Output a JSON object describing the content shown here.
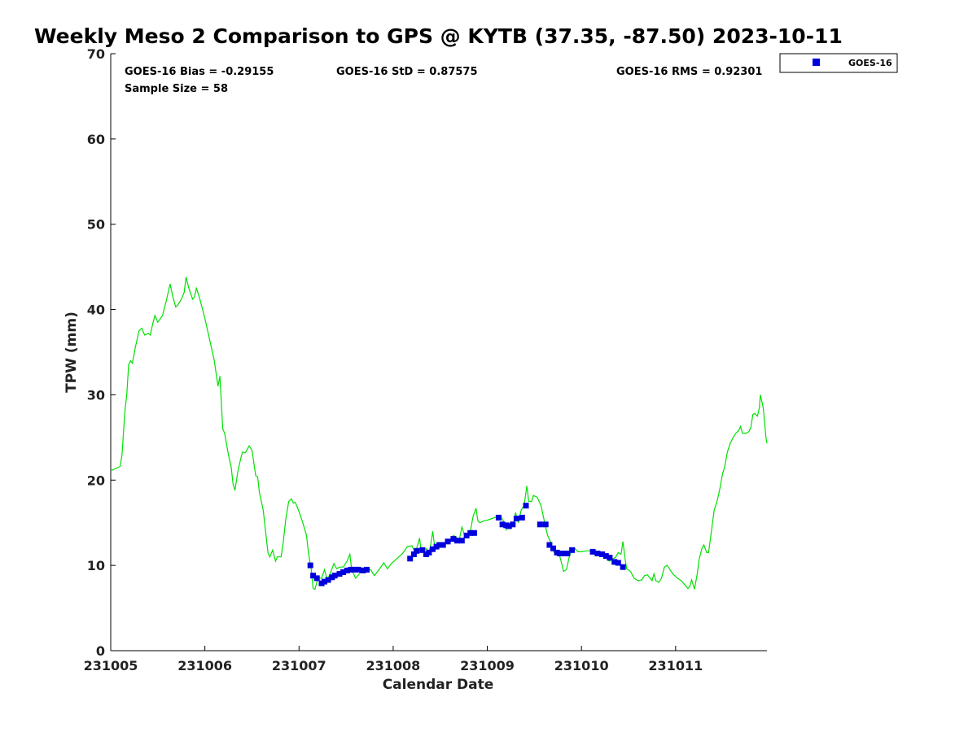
{
  "title": "Weekly Meso 2 Comparison to GPS @ KYTB (37.35, -87.50) 2023-10-11",
  "stats": {
    "bias": "GOES-16 Bias = -0.29155",
    "std": "GOES-16 StD = 0.87575",
    "rms": "GOES-16 RMS = 0.92301",
    "sample": "Sample Size = 58"
  },
  "chart_data": {
    "type": "scatter",
    "xlabel": "Calendar Date",
    "ylabel": "TPW (mm)",
    "xlim": [
      0,
      6.97
    ],
    "ylim": [
      0,
      70
    ],
    "x_ticks": [
      {
        "value": 0,
        "label": "231005"
      },
      {
        "value": 1,
        "label": "231006"
      },
      {
        "value": 2,
        "label": "231007"
      },
      {
        "value": 3,
        "label": "231008"
      },
      {
        "value": 4,
        "label": "231009"
      },
      {
        "value": 5,
        "label": "231010"
      },
      {
        "value": 6,
        "label": "231011"
      }
    ],
    "y_ticks": [
      0,
      10,
      20,
      30,
      40,
      50,
      60,
      70
    ],
    "legend": {
      "placement": "outside-top-right",
      "entries": [
        "GOES-16"
      ]
    },
    "gps_line": {
      "color": "#00e000",
      "points": [
        [
          0,
          21.1
        ],
        [
          0.1,
          21.6
        ],
        [
          0.12,
          23.0
        ],
        [
          0.15,
          28.0
        ],
        [
          0.17,
          30.0
        ],
        [
          0.19,
          33.5
        ],
        [
          0.21,
          34.0
        ],
        [
          0.23,
          33.7
        ],
        [
          0.26,
          35.5
        ],
        [
          0.3,
          37.5
        ],
        [
          0.33,
          37.8
        ],
        [
          0.36,
          37.0
        ],
        [
          0.4,
          37.2
        ],
        [
          0.42,
          37.0
        ],
        [
          0.45,
          38.5
        ],
        [
          0.47,
          39.3
        ],
        [
          0.5,
          38.5
        ],
        [
          0.55,
          39.3
        ],
        [
          0.59,
          41.0
        ],
        [
          0.62,
          42.5
        ],
        [
          0.63,
          43.0
        ],
        [
          0.66,
          41.5
        ],
        [
          0.69,
          40.3
        ],
        [
          0.71,
          40.5
        ],
        [
          0.75,
          41.2
        ],
        [
          0.78,
          42.0
        ],
        [
          0.8,
          43.8
        ],
        [
          0.83,
          42.5
        ],
        [
          0.87,
          41.2
        ],
        [
          0.89,
          41.5
        ],
        [
          0.91,
          42.5
        ],
        [
          0.94,
          41.5
        ],
        [
          1.0,
          39.0
        ],
        [
          1.05,
          36.5
        ],
        [
          1.1,
          34.0
        ],
        [
          1.14,
          31.0
        ],
        [
          1.16,
          32.2
        ],
        [
          1.19,
          26.0
        ],
        [
          1.21,
          25.5
        ],
        [
          1.25,
          23.0
        ],
        [
          1.28,
          21.5
        ],
        [
          1.3,
          19.5
        ],
        [
          1.32,
          18.8
        ],
        [
          1.35,
          21.0
        ],
        [
          1.38,
          22.5
        ],
        [
          1.4,
          23.3
        ],
        [
          1.43,
          23.2
        ],
        [
          1.47,
          24.0
        ],
        [
          1.5,
          23.5
        ],
        [
          1.52,
          22.0
        ],
        [
          1.54,
          20.5
        ],
        [
          1.56,
          20.4
        ],
        [
          1.58,
          18.5
        ],
        [
          1.62,
          16.5
        ],
        [
          1.64,
          14.5
        ],
        [
          1.67,
          11.5
        ],
        [
          1.69,
          11.0
        ],
        [
          1.72,
          11.8
        ],
        [
          1.75,
          10.5
        ],
        [
          1.77,
          11.0
        ],
        [
          1.81,
          11.0
        ],
        [
          1.83,
          12.5
        ],
        [
          1.86,
          15.5
        ],
        [
          1.89,
          17.5
        ],
        [
          1.92,
          17.8
        ],
        [
          1.94,
          17.3
        ],
        [
          1.96,
          17.4
        ],
        [
          2.0,
          16.3
        ],
        [
          2.04,
          15.0
        ],
        [
          2.08,
          13.5
        ],
        [
          2.1,
          11.5
        ],
        [
          2.13,
          9.5
        ],
        [
          2.15,
          7.3
        ],
        [
          2.17,
          7.2
        ],
        [
          2.2,
          8.5
        ],
        [
          2.24,
          8.5
        ],
        [
          2.27,
          9.5
        ],
        [
          2.3,
          8.3
        ],
        [
          2.33,
          9.0
        ],
        [
          2.37,
          10.2
        ],
        [
          2.4,
          9.6
        ],
        [
          2.43,
          9.8
        ],
        [
          2.47,
          9.8
        ],
        [
          2.51,
          10.5
        ],
        [
          2.54,
          11.3
        ],
        [
          2.56,
          9.5
        ],
        [
          2.6,
          8.5
        ],
        [
          2.64,
          9.0
        ],
        [
          2.68,
          9.7
        ],
        [
          2.72,
          9.5
        ],
        [
          2.76,
          9.5
        ],
        [
          2.8,
          8.8
        ],
        [
          2.85,
          9.5
        ],
        [
          2.9,
          10.3
        ],
        [
          2.94,
          9.6
        ],
        [
          2.98,
          10.2
        ],
        [
          3.04,
          10.8
        ],
        [
          3.1,
          11.4
        ],
        [
          3.15,
          12.2
        ],
        [
          3.2,
          12.3
        ],
        [
          3.22,
          11.8
        ],
        [
          3.25,
          12.0
        ],
        [
          3.28,
          13.2
        ],
        [
          3.3,
          11.5
        ],
        [
          3.35,
          12.0
        ],
        [
          3.38,
          11.6
        ],
        [
          3.4,
          12.5
        ],
        [
          3.42,
          14.0
        ],
        [
          3.44,
          12.3
        ],
        [
          3.48,
          12.5
        ],
        [
          3.52,
          12.5
        ],
        [
          3.55,
          12.6
        ],
        [
          3.58,
          12.8
        ],
        [
          3.61,
          12.8
        ],
        [
          3.64,
          13.5
        ],
        [
          3.67,
          13.3
        ],
        [
          3.7,
          12.9
        ],
        [
          3.73,
          14.5
        ],
        [
          3.76,
          13.5
        ],
        [
          3.79,
          13.5
        ],
        [
          3.82,
          14.0
        ],
        [
          3.85,
          15.8
        ],
        [
          3.88,
          16.7
        ],
        [
          3.9,
          15.2
        ],
        [
          3.92,
          15.0
        ],
        [
          3.96,
          15.2
        ],
        [
          4.0,
          15.3
        ],
        [
          4.05,
          15.5
        ],
        [
          4.1,
          15.7
        ],
        [
          4.14,
          15.8
        ],
        [
          4.18,
          15.0
        ],
        [
          4.2,
          14.2
        ],
        [
          4.22,
          15.0
        ],
        [
          4.25,
          14.7
        ],
        [
          4.28,
          15.0
        ],
        [
          4.3,
          16.2
        ],
        [
          4.33,
          15.0
        ],
        [
          4.36,
          16.5
        ],
        [
          4.39,
          17.0
        ],
        [
          4.42,
          19.3
        ],
        [
          4.44,
          17.5
        ],
        [
          4.47,
          17.5
        ],
        [
          4.49,
          18.2
        ],
        [
          4.53,
          18.0
        ],
        [
          4.57,
          17.0
        ],
        [
          4.6,
          15.5
        ],
        [
          4.62,
          14.5
        ],
        [
          4.64,
          13.5
        ],
        [
          4.67,
          12.8
        ],
        [
          4.69,
          12.0
        ],
        [
          4.71,
          11.5
        ],
        [
          4.73,
          11.3
        ],
        [
          4.76,
          11.5
        ],
        [
          4.79,
          10.2
        ],
        [
          4.81,
          9.3
        ],
        [
          4.84,
          9.5
        ],
        [
          4.87,
          11.0
        ],
        [
          4.9,
          11.8
        ],
        [
          4.93,
          12.0
        ],
        [
          4.96,
          11.6
        ],
        [
          5.0,
          11.6
        ],
        [
          5.05,
          11.7
        ],
        [
          5.1,
          11.7
        ],
        [
          5.14,
          11.5
        ],
        [
          5.18,
          11.3
        ],
        [
          5.22,
          11.6
        ],
        [
          5.25,
          11.2
        ],
        [
          5.28,
          10.6
        ],
        [
          5.3,
          10.5
        ],
        [
          5.33,
          10.8
        ],
        [
          5.36,
          10.9
        ],
        [
          5.39,
          11.5
        ],
        [
          5.42,
          11.3
        ],
        [
          5.44,
          12.8
        ],
        [
          5.46,
          11.0
        ],
        [
          5.48,
          9.6
        ],
        [
          5.52,
          9.3
        ],
        [
          5.56,
          8.5
        ],
        [
          5.6,
          8.2
        ],
        [
          5.64,
          8.3
        ],
        [
          5.67,
          8.8
        ],
        [
          5.7,
          8.9
        ],
        [
          5.73,
          8.5
        ],
        [
          5.75,
          8.2
        ],
        [
          5.77,
          9.0
        ],
        [
          5.79,
          8.2
        ],
        [
          5.82,
          8.0
        ],
        [
          5.85,
          8.5
        ],
        [
          5.88,
          9.8
        ],
        [
          5.91,
          10.0
        ],
        [
          5.94,
          9.5
        ],
        [
          5.97,
          9.0
        ],
        [
          6.02,
          8.5
        ],
        [
          6.06,
          8.2
        ],
        [
          6.1,
          7.7
        ],
        [
          6.13,
          7.3
        ],
        [
          6.15,
          7.5
        ],
        [
          6.17,
          8.3
        ],
        [
          6.2,
          7.2
        ],
        [
          6.23,
          9.0
        ],
        [
          6.25,
          10.7
        ],
        [
          6.28,
          12.0
        ],
        [
          6.3,
          12.4
        ],
        [
          6.33,
          11.5
        ],
        [
          6.35,
          11.5
        ],
        [
          6.38,
          14.0
        ],
        [
          6.41,
          16.5
        ],
        [
          6.44,
          17.5
        ],
        [
          6.47,
          19.0
        ],
        [
          6.5,
          20.8
        ],
        [
          6.52,
          21.5
        ],
        [
          6.55,
          23.3
        ],
        [
          6.58,
          24.3
        ],
        [
          6.61,
          25.0
        ],
        [
          6.64,
          25.5
        ],
        [
          6.67,
          25.8
        ],
        [
          6.69,
          26.3
        ],
        [
          6.71,
          25.5
        ],
        [
          6.75,
          25.5
        ],
        [
          6.78,
          25.7
        ],
        [
          6.8,
          26.2
        ],
        [
          6.82,
          27.7
        ],
        [
          6.84,
          27.8
        ],
        [
          6.87,
          27.5
        ],
        [
          6.89,
          28.5
        ],
        [
          6.9,
          30.0
        ],
        [
          6.93,
          28.5
        ],
        [
          6.96,
          25.0
        ],
        [
          6.97,
          24.3
        ]
      ]
    },
    "series": [
      {
        "name": "GOES-16",
        "color": "#0000dd",
        "points": [
          [
            2.12,
            10.0
          ],
          [
            2.15,
            8.8
          ],
          [
            2.19,
            8.5
          ],
          [
            2.24,
            7.9
          ],
          [
            2.27,
            8.1
          ],
          [
            2.31,
            8.3
          ],
          [
            2.35,
            8.6
          ],
          [
            2.38,
            8.8
          ],
          [
            2.43,
            9.0
          ],
          [
            2.47,
            9.2
          ],
          [
            2.51,
            9.4
          ],
          [
            2.55,
            9.5
          ],
          [
            2.59,
            9.5
          ],
          [
            2.63,
            9.5
          ],
          [
            2.68,
            9.4
          ],
          [
            2.72,
            9.5
          ],
          [
            3.18,
            10.8
          ],
          [
            3.22,
            11.3
          ],
          [
            3.25,
            11.7
          ],
          [
            3.31,
            11.8
          ],
          [
            3.35,
            11.3
          ],
          [
            3.38,
            11.5
          ],
          [
            3.42,
            11.9
          ],
          [
            3.46,
            12.2
          ],
          [
            3.49,
            12.4
          ],
          [
            3.53,
            12.4
          ],
          [
            3.58,
            12.8
          ],
          [
            3.64,
            13.1
          ],
          [
            3.68,
            12.9
          ],
          [
            3.73,
            12.9
          ],
          [
            3.78,
            13.5
          ],
          [
            3.82,
            13.8
          ],
          [
            3.86,
            13.8
          ],
          [
            4.12,
            15.6
          ],
          [
            4.16,
            14.8
          ],
          [
            4.2,
            14.7
          ],
          [
            4.23,
            14.6
          ],
          [
            4.27,
            14.8
          ],
          [
            4.31,
            15.5
          ],
          [
            4.37,
            15.6
          ],
          [
            4.41,
            17.0
          ],
          [
            4.56,
            14.8
          ],
          [
            4.62,
            14.8
          ],
          [
            4.66,
            12.4
          ],
          [
            4.7,
            12.0
          ],
          [
            4.74,
            11.5
          ],
          [
            4.77,
            11.4
          ],
          [
            4.81,
            11.4
          ],
          [
            4.85,
            11.4
          ],
          [
            4.9,
            11.8
          ],
          [
            5.12,
            11.6
          ],
          [
            5.17,
            11.4
          ],
          [
            5.22,
            11.3
          ],
          [
            5.26,
            11.1
          ],
          [
            5.3,
            10.9
          ],
          [
            5.35,
            10.4
          ],
          [
            5.39,
            10.3
          ],
          [
            5.44,
            9.8
          ]
        ]
      }
    ]
  }
}
